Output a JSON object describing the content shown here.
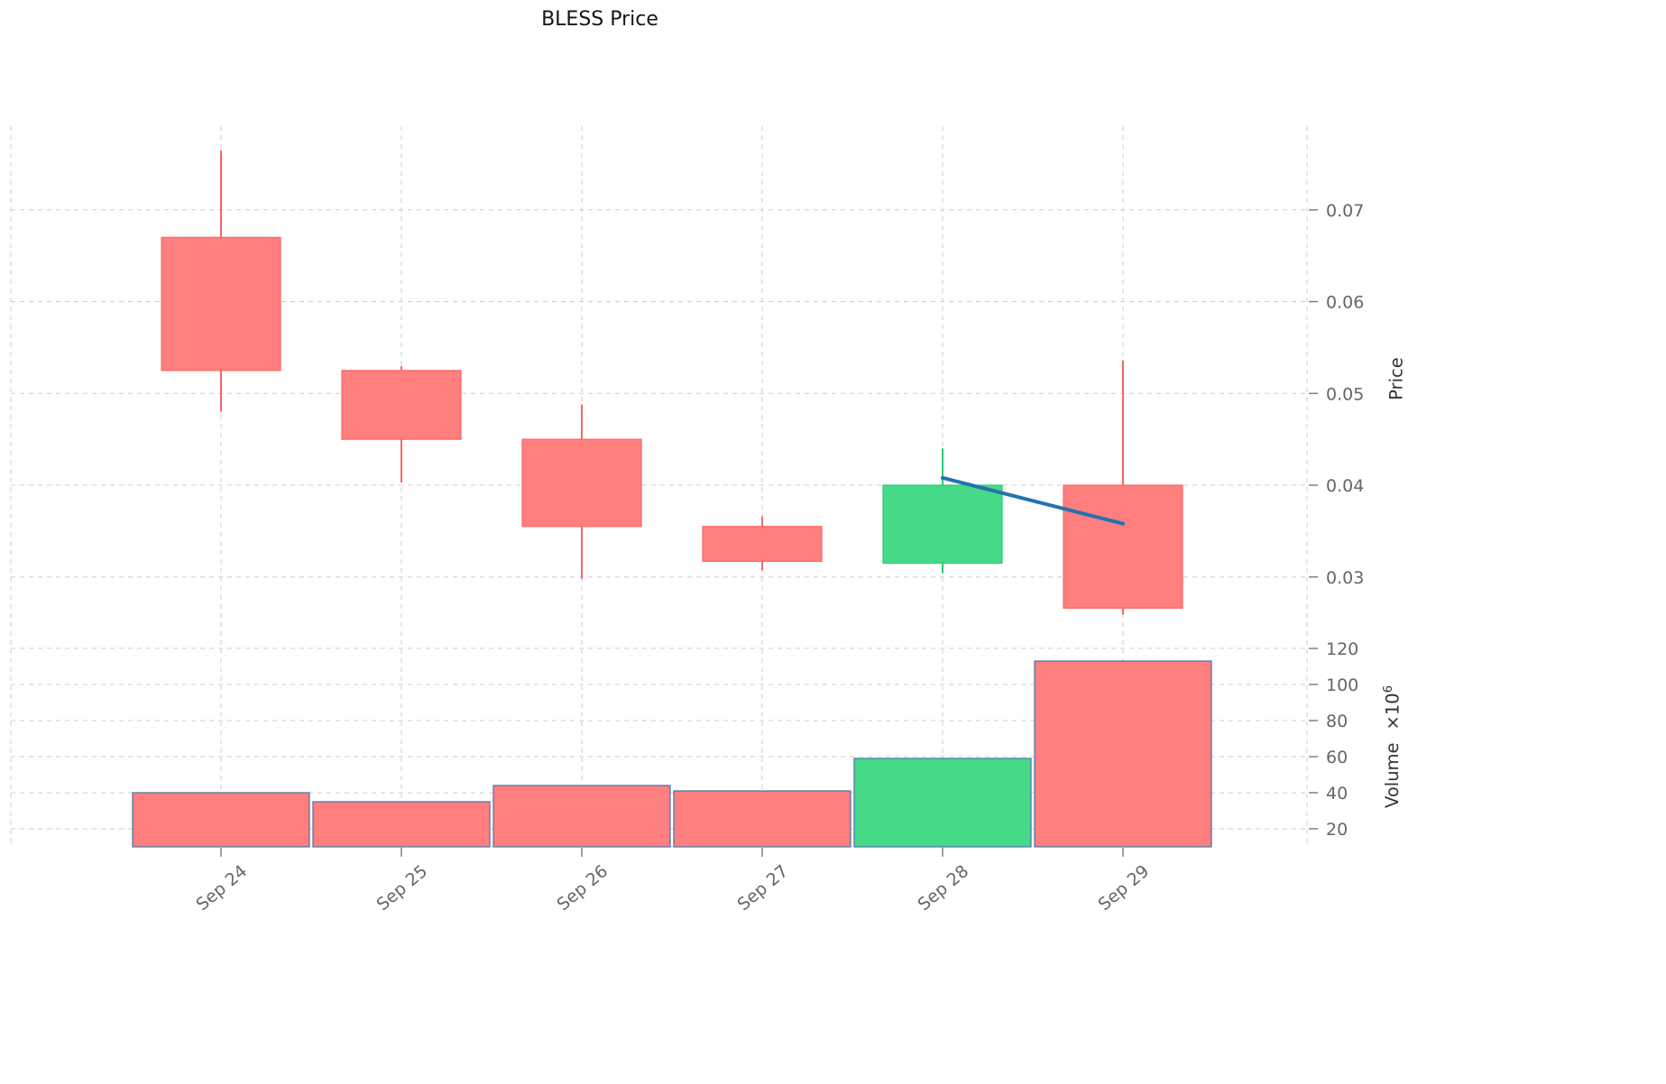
{
  "title": "BLESS Price",
  "axes": {
    "price_label": "Price",
    "volume_label": "Volume",
    "volume_mult_base": "×10",
    "volume_mult_exp": "6"
  },
  "chart_data": {
    "type": "candlestick",
    "title": "BLESS Price",
    "categories": [
      "Sep 24",
      "Sep 25",
      "Sep 26",
      "Sep 27",
      "Sep 28",
      "Sep 29"
    ],
    "ohlc": [
      {
        "date": "Sep 24",
        "open": 0.067,
        "high": 0.0765,
        "low": 0.048,
        "close": 0.0525
      },
      {
        "date": "Sep 25",
        "open": 0.0525,
        "high": 0.053,
        "low": 0.0403,
        "close": 0.045
      },
      {
        "date": "Sep 26",
        "open": 0.045,
        "high": 0.0488,
        "low": 0.0298,
        "close": 0.0355
      },
      {
        "date": "Sep 27",
        "open": 0.0355,
        "high": 0.0366,
        "low": 0.0307,
        "close": 0.0317
      },
      {
        "date": "Sep 28",
        "open": 0.0315,
        "high": 0.044,
        "low": 0.0304,
        "close": 0.04
      },
      {
        "date": "Sep 29",
        "open": 0.04,
        "high": 0.0536,
        "low": 0.0259,
        "close": 0.0266
      }
    ],
    "volume": [
      40,
      35,
      44,
      41,
      59,
      113
    ],
    "volume_unit": "10^6",
    "price_ticks": [
      0.03,
      0.04,
      0.05,
      0.06,
      0.07
    ],
    "volume_ticks": [
      20,
      40,
      60,
      80,
      100,
      120
    ],
    "price_axis_label": "Price",
    "volume_axis_label": "Volume ×10⁶",
    "trendline": {
      "points": [
        {
          "date": "Sep 28",
          "price": 0.0408
        },
        {
          "date": "Sep 29",
          "price": 0.0358
        }
      ]
    },
    "colors": {
      "up": "#45d988",
      "up_edge": "#2cc974",
      "up_wick": "#2cc974",
      "down": "#ff7e7e",
      "down_edge": "#fb6666",
      "down_wick": "#fb6666",
      "volume_edge": "#527aa8",
      "trendline": "#2572ae",
      "grid": "#cdcdcd",
      "tick_text": "#666666"
    }
  }
}
